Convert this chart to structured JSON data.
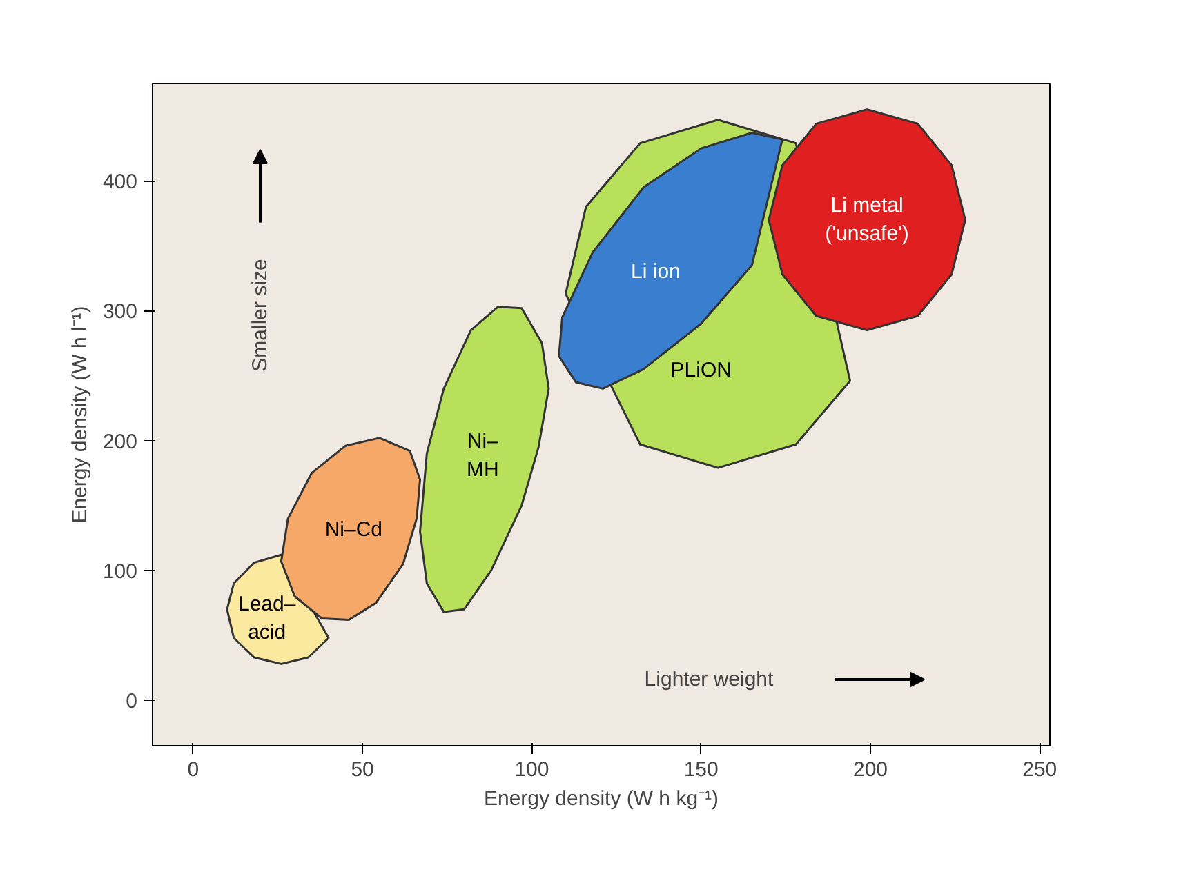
{
  "chart_data": {
    "type": "area",
    "xlabel": "Energy density (W h kg⁻¹)",
    "ylabel": "Energy density (W h l⁻¹)",
    "xlim": [
      -12,
      253
    ],
    "ylim": [
      -35,
      475
    ],
    "xticks": [
      0,
      50,
      100,
      150,
      200,
      250
    ],
    "yticks": [
      0,
      100,
      200,
      300,
      400
    ],
    "grid": false,
    "legend": false,
    "annotations": [
      "Smaller size",
      "Lighter weight"
    ],
    "series": [
      {
        "name": "Lead–\nacid",
        "color": "#fbe9a0",
        "x": [
          26,
          18,
          12,
          10,
          12,
          18,
          26,
          34,
          40
        ],
        "values": [
          112,
          106,
          90,
          70,
          48,
          33,
          28,
          33,
          48
        ]
      },
      {
        "name": "Ni–Cd",
        "color": "#f5a868",
        "x": [
          67,
          64,
          55,
          45,
          35,
          28,
          26,
          30,
          38,
          46,
          54,
          62,
          66
        ],
        "values": [
          170,
          192,
          202,
          196,
          175,
          140,
          107,
          80,
          63,
          62,
          75,
          105,
          140
        ]
      },
      {
        "name": "Ni–\nMH",
        "color": "#b8e05a",
        "x": [
          105,
          103,
          97,
          90,
          82,
          74,
          69,
          67,
          69,
          74,
          80,
          88,
          97,
          102
        ],
        "values": [
          240,
          275,
          302,
          303,
          285,
          240,
          190,
          130,
          90,
          68,
          70,
          100,
          150,
          195
        ]
      },
      {
        "name": "PLiON",
        "color": "#b8e05a",
        "x": [
          178,
          155,
          132,
          116,
          110,
          132,
          155,
          178,
          194
        ],
        "values": [
          429,
          447,
          429,
          380,
          313,
          197,
          179,
          197,
          246
        ]
      },
      {
        "name": "Li ion",
        "color": "#3a7fcf",
        "x": [
          174,
          165,
          150,
          133,
          118,
          109,
          108,
          113,
          121,
          133,
          150,
          165
        ],
        "values": [
          432,
          437,
          425,
          395,
          345,
          295,
          265,
          245,
          240,
          255,
          290,
          335
        ]
      },
      {
        "name": "Li metal\n('unsafe')",
        "color": "#e02020",
        "x": [
          228,
          224,
          214,
          199,
          184,
          174,
          170,
          174,
          184,
          199,
          214,
          224
        ],
        "values": [
          370,
          412,
          444,
          455,
          444,
          412,
          370,
          328,
          296,
          285,
          296,
          328
        ]
      }
    ]
  }
}
